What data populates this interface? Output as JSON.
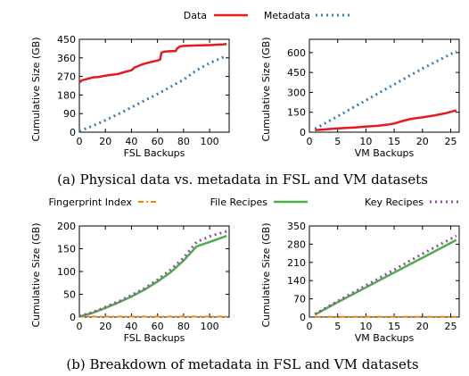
{
  "captions": {
    "a": "(a) Physical data vs. metadata in FSL and VM datasets",
    "b": "(b) Breakdown of metadata in FSL and VM datasets"
  },
  "legend_top": [
    {
      "name": "Data",
      "color": "#e41a1c",
      "style": "solid"
    },
    {
      "name": "Metadata",
      "color": "#377eb8",
      "style": "dotted"
    }
  ],
  "legend_bottom": [
    {
      "name": "Fingerprint Index",
      "color": "#ff7f00",
      "style": "dashdot"
    },
    {
      "name": "File Recipes",
      "color": "#4daf4a",
      "style": "solid"
    },
    {
      "name": "Key Recipes",
      "color": "#984ea3",
      "style": "dotted"
    }
  ],
  "chart_data": [
    {
      "type": "line",
      "xlabel": "FSL Backups",
      "ylabel": "Cumulative Size (GB)",
      "xlim": [
        0,
        115
      ],
      "ylim": [
        0,
        450
      ],
      "xticks": [
        0,
        20,
        40,
        60,
        80,
        100
      ],
      "yticks": [
        0,
        90,
        180,
        270,
        360,
        450
      ],
      "series": [
        {
          "name": "Data",
          "color": "#e41a1c",
          "style": "solid",
          "x": [
            0,
            2,
            5,
            10,
            15,
            20,
            30,
            35,
            40,
            42,
            45,
            50,
            55,
            60,
            62,
            63,
            65,
            70,
            74,
            75,
            77,
            80,
            90,
            100,
            110,
            113
          ],
          "y": [
            240,
            252,
            256,
            265,
            268,
            274,
            282,
            292,
            300,
            312,
            320,
            332,
            340,
            347,
            352,
            385,
            390,
            393,
            393,
            405,
            415,
            418,
            420,
            422,
            425,
            427
          ]
        },
        {
          "name": "Metadata",
          "color": "#377eb8",
          "style": "dotted",
          "x": [
            0,
            10,
            20,
            30,
            40,
            50,
            60,
            70,
            80,
            90,
            100,
            113
          ],
          "y": [
            5,
            30,
            58,
            88,
            120,
            153,
            185,
            220,
            255,
            300,
            335,
            370
          ]
        }
      ]
    },
    {
      "type": "line",
      "xlabel": "VM Backups",
      "ylabel": "Cumulative Size (GB)",
      "xlim": [
        0,
        26.5
      ],
      "ylim": [
        0,
        700
      ],
      "xticks": [
        0,
        5,
        10,
        15,
        20,
        25
      ],
      "yticks": [
        0,
        150,
        300,
        450,
        600
      ],
      "series": [
        {
          "name": "Data",
          "color": "#e41a1c",
          "style": "solid",
          "x": [
            1,
            3,
            5,
            8,
            10,
            12,
            14,
            15,
            16,
            17,
            18,
            20,
            22,
            24,
            26
          ],
          "y": [
            15,
            22,
            28,
            35,
            42,
            48,
            58,
            65,
            78,
            90,
            100,
            112,
            125,
            142,
            165
          ]
        },
        {
          "name": "Metadata",
          "color": "#377eb8",
          "style": "dotted",
          "x": [
            1,
            5,
            10,
            15,
            20,
            26
          ],
          "y": [
            25,
            120,
            240,
            360,
            480,
            610
          ]
        }
      ]
    },
    {
      "type": "line",
      "xlabel": "FSL Backups",
      "ylabel": "Cumulative Size (GB)",
      "xlim": [
        0,
        115
      ],
      "ylim": [
        0,
        200
      ],
      "xticks": [
        0,
        20,
        40,
        60,
        80,
        100
      ],
      "yticks": [
        0,
        50,
        100,
        150,
        200
      ],
      "series": [
        {
          "name": "Fingerprint Index",
          "color": "#ff7f00",
          "style": "dashdot",
          "x": [
            0,
            113
          ],
          "y": [
            1,
            1
          ]
        },
        {
          "name": "File Recipes",
          "color": "#4daf4a",
          "style": "solid",
          "x": [
            0,
            10,
            20,
            30,
            40,
            50,
            60,
            70,
            80,
            90,
            100,
            113
          ],
          "y": [
            1,
            9,
            20,
            32,
            45,
            60,
            78,
            98,
            124,
            155,
            165,
            178
          ]
        },
        {
          "name": "Key Recipes",
          "color": "#984ea3",
          "style": "dotted",
          "x": [
            0,
            10,
            20,
            30,
            40,
            50,
            60,
            70,
            80,
            90,
            100,
            113
          ],
          "y": [
            2,
            10,
            22,
            34,
            48,
            63,
            82,
            104,
            130,
            165,
            177,
            188
          ]
        }
      ]
    },
    {
      "type": "line",
      "xlabel": "VM Backups",
      "ylabel": "Cumulative Size (GB)",
      "xlim": [
        0,
        26.5
      ],
      "ylim": [
        0,
        350
      ],
      "xticks": [
        0,
        5,
        10,
        15,
        20,
        25
      ],
      "yticks": [
        0,
        70,
        140,
        210,
        280,
        350
      ],
      "series": [
        {
          "name": "Fingerprint Index",
          "color": "#ff7f00",
          "style": "dashdot",
          "x": [
            1,
            26
          ],
          "y": [
            1,
            1
          ]
        },
        {
          "name": "File Recipes",
          "color": "#4daf4a",
          "style": "solid",
          "x": [
            1,
            5,
            10,
            15,
            20,
            26
          ],
          "y": [
            10,
            57,
            114,
            171,
            228,
            296
          ]
        },
        {
          "name": "Key Recipes",
          "color": "#984ea3",
          "style": "dotted",
          "x": [
            1,
            5,
            10,
            15,
            20,
            26
          ],
          "y": [
            11,
            61,
            121,
            182,
            243,
            312
          ]
        }
      ]
    }
  ]
}
